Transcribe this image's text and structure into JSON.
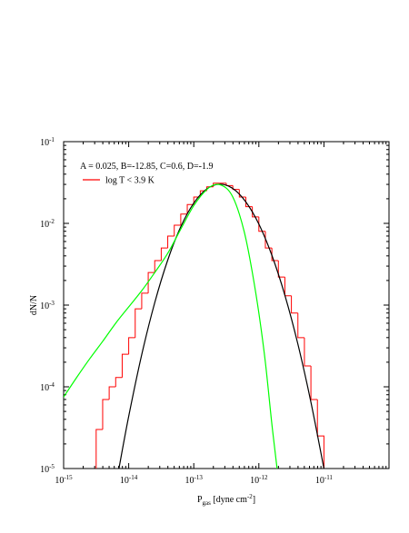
{
  "chart_data": {
    "type": "line",
    "xscale": "log",
    "yscale": "log",
    "xlim": [
      1e-15,
      1e-10
    ],
    "ylim": [
      1e-05,
      0.1
    ],
    "xticks": [
      {
        "value": 1e-15,
        "label": "10",
        "exponent": "-15"
      },
      {
        "value": 1e-14,
        "label": "10",
        "exponent": "-14"
      },
      {
        "value": 1e-13,
        "label": "10",
        "exponent": "-13"
      },
      {
        "value": 1e-12,
        "label": "10",
        "exponent": "-12"
      },
      {
        "value": 1e-11,
        "label": "10",
        "exponent": "-11"
      }
    ],
    "yticks": [
      {
        "value": 1e-05,
        "label": "10",
        "exponent": "-5"
      },
      {
        "value": 0.0001,
        "label": "10",
        "exponent": "-4"
      },
      {
        "value": 0.001,
        "label": "10",
        "exponent": "-3"
      },
      {
        "value": 0.01,
        "label": "10",
        "exponent": "-2"
      },
      {
        "value": 0.1,
        "label": "10",
        "exponent": "-1"
      }
    ],
    "xlabel": {
      "text": "P",
      "sub": "gas",
      "rest": " [dyne cm",
      "sup": "-2",
      "end": "]"
    },
    "ylabel": "dN/N",
    "annotation": "A = 0.025, B=-12.85, C=0.6, D=-1.9",
    "legend": "top-left",
    "series": [
      {
        "name": "log T < 3.9 K",
        "type": "histogram",
        "color": "#ff0000",
        "bins": [
          3.162e-15,
          3.981e-15,
          5.012e-15,
          6.31e-15,
          7.943e-15,
          1e-14,
          1.259e-14,
          1.585e-14,
          1.995e-14,
          2.512e-14,
          3.162e-14,
          3.981e-14,
          5.012e-14,
          6.31e-14,
          7.943e-14,
          1e-13,
          1.259e-13,
          1.585e-13,
          1.995e-13,
          2.512e-13,
          3.162e-13,
          3.981e-13,
          5.012e-13,
          6.31e-13,
          7.943e-13,
          1e-12,
          1.259e-12,
          1.585e-12,
          1.995e-12,
          2.512e-12,
          3.162e-12,
          3.981e-12,
          5.012e-12,
          6.31e-12,
          7.943e-12,
          1e-11
        ],
        "values": [
          3e-05,
          7e-05,
          0.0001,
          0.00013,
          0.00025,
          0.0004,
          0.0009,
          0.0014,
          0.0025,
          0.0035,
          0.005,
          0.007,
          0.0095,
          0.013,
          0.017,
          0.021,
          0.025,
          0.028,
          0.031,
          0.031,
          0.029,
          0.026,
          0.021,
          0.016,
          0.012,
          0.008,
          0.005,
          0.0035,
          0.0022,
          0.0013,
          0.0008,
          0.0004,
          0.00018,
          7e-05,
          2.5e-05
        ]
      },
      {
        "type": "line",
        "color": "#000000",
        "x": [
          7.079e-15,
          1e-14,
          1.585e-14,
          2.512e-14,
          3.981e-14,
          6.31e-14,
          1e-13,
          1.585e-13,
          2.512e-13,
          3.981e-13,
          6.31e-13,
          1e-12,
          1.585e-12,
          2.512e-12,
          3.981e-12,
          6.31e-12,
          1e-11
        ],
        "values": [
          1e-05,
          4.35e-05,
          0.000247,
          0.00107,
          0.00356,
          0.00908,
          0.0177,
          0.0264,
          0.0302,
          0.0267,
          0.0183,
          0.0098,
          0.00407,
          0.00132,
          0.000333,
          6.5e-05,
          1e-05
        ]
      },
      {
        "type": "line",
        "color": "#00ff00",
        "x": [
          1e-15,
          1.585e-15,
          2.512e-15,
          3.981e-15,
          6.31e-15,
          1e-14,
          1.585e-14,
          2.512e-14,
          3.981e-14,
          6.31e-14,
          1e-13,
          1.585e-13,
          2.239e-13,
          3.162e-13,
          3.981e-13,
          5.012e-13,
          6.31e-13,
          7.943e-13,
          1e-12,
          1.259e-12,
          1.585e-12,
          1.905e-12
        ],
        "values": [
          7.5e-05,
          0.00013,
          0.00022,
          0.00036,
          0.0006,
          0.00095,
          0.0015,
          0.0025,
          0.0043,
          0.0085,
          0.0165,
          0.026,
          0.03,
          0.027,
          0.021,
          0.013,
          0.0065,
          0.0025,
          0.0008,
          0.0002,
          3.5e-05,
          1e-05
        ]
      }
    ]
  }
}
